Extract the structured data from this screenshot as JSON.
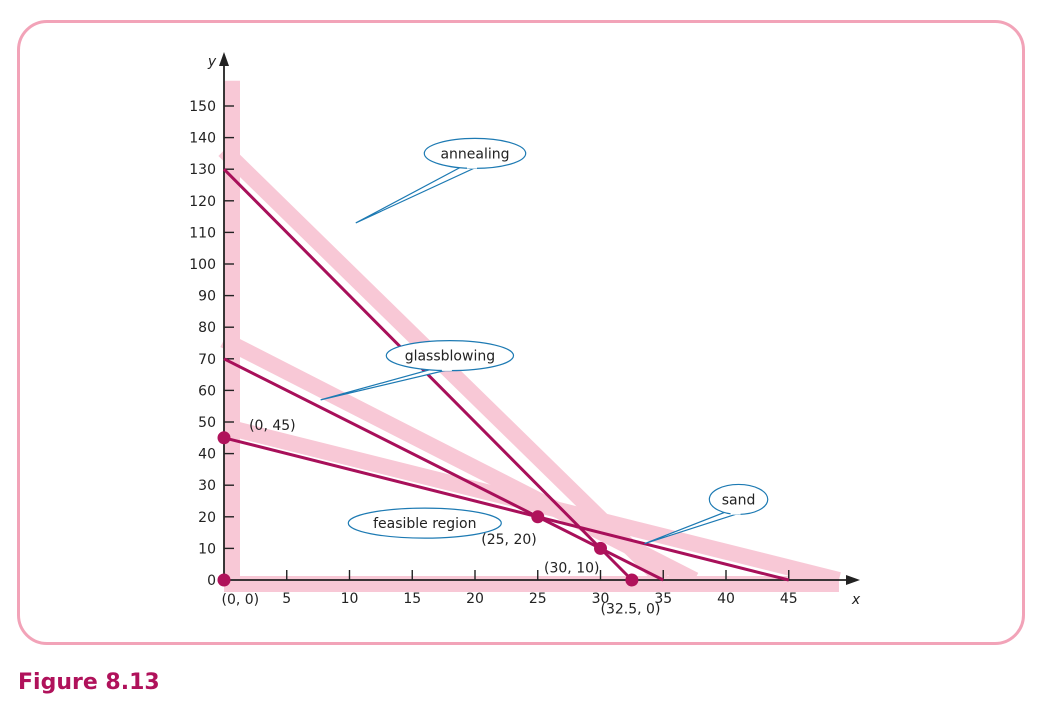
{
  "caption": "Figure 8.13",
  "chart_data": {
    "type": "line",
    "xlabel": "x",
    "ylabel": "y",
    "xlim": [
      0,
      49
    ],
    "ylim": [
      0,
      158
    ],
    "x_ticks": [
      5,
      10,
      15,
      20,
      25,
      30,
      35,
      40,
      45
    ],
    "y_ticks": [
      0,
      10,
      20,
      30,
      40,
      50,
      60,
      70,
      80,
      90,
      100,
      110,
      120,
      130,
      140,
      150
    ],
    "x_tick_labels": [
      "5",
      "10",
      "15",
      "20",
      "25",
      "30",
      "35",
      "40",
      "45"
    ],
    "y_tick_labels": [
      "0",
      "10",
      "20",
      "30",
      "40",
      "50",
      "60",
      "70",
      "80",
      "90",
      "100",
      "110",
      "120",
      "130",
      "140",
      "150"
    ],
    "series": [
      {
        "name": "annealing",
        "points": [
          [
            0,
            130
          ],
          [
            32.5,
            0
          ]
        ]
      },
      {
        "name": "glassblowing",
        "points": [
          [
            0,
            70
          ],
          [
            35,
            0
          ]
        ]
      },
      {
        "name": "sand",
        "points": [
          [
            0,
            45
          ],
          [
            45,
            0
          ]
        ]
      }
    ],
    "bubbles": [
      {
        "series": "annealing",
        "text": "annealing",
        "pos": [
          20,
          135
        ],
        "tip": [
          10.5,
          113
        ]
      },
      {
        "series": "glassblowing",
        "text": "glassblowing",
        "pos": [
          18,
          71
        ],
        "tip": [
          7.7,
          57
        ]
      },
      {
        "series": "sand",
        "text": "sand",
        "pos": [
          41,
          25.5
        ],
        "tip": [
          33.5,
          11.5
        ]
      }
    ],
    "region_label": {
      "text": "feasible region",
      "pos": [
        16,
        18
      ]
    },
    "points": [
      {
        "x": 0,
        "y": 0,
        "label": "(0, 0)",
        "lx": -0.2,
        "ly": -6
      },
      {
        "x": 0,
        "y": 45,
        "label": "(0, 45)",
        "lx": 2,
        "ly": 49
      },
      {
        "x": 25,
        "y": 20,
        "label": "(25, 20)",
        "lx": 20.5,
        "ly": 13
      },
      {
        "x": 30,
        "y": 10,
        "label": "(30, 10)",
        "lx": 25.5,
        "ly": 4
      },
      {
        "x": 32.5,
        "y": 0,
        "label": "(32.5, 0)",
        "lx": 30,
        "ly": -9
      }
    ],
    "colors": {
      "line": "#a8105a",
      "highlight": "#f8c8d6",
      "point": "#b0125b",
      "bubble_stroke": "#1d7ab3"
    }
  }
}
